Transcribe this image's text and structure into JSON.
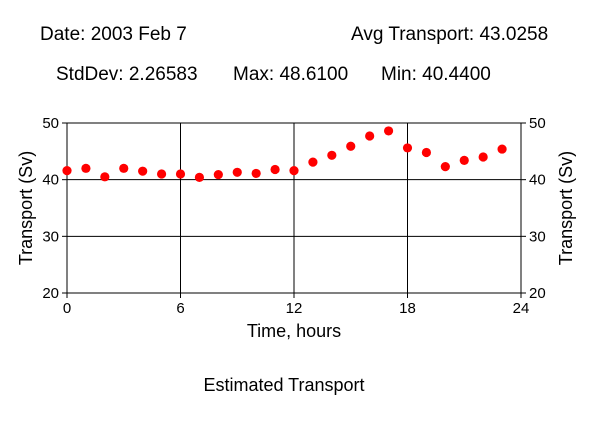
{
  "header": {
    "date": "Date: 2003 Feb 7",
    "avg": "Avg Transport: 43.0258",
    "stddev": "StdDev: 2.26583",
    "max": "Max: 48.6100",
    "min": "Min: 40.4400"
  },
  "caption": "Estimated Transport",
  "chart_data": {
    "type": "scatter",
    "title": "",
    "xlabel": "Time, hours",
    "ylabel": "Transport (Sv)",
    "xlim": [
      0,
      24
    ],
    "ylim": [
      20,
      50
    ],
    "xticks": [
      "0",
      "6",
      "12",
      "18",
      "24"
    ],
    "yticks": [
      "20",
      "30",
      "40",
      "50"
    ],
    "grid": true,
    "marker_color": "#ff0000",
    "x": [
      0,
      1,
      2,
      3,
      4,
      5,
      6,
      7,
      8,
      9,
      10,
      11,
      12,
      13,
      14,
      15,
      16,
      17,
      18,
      19,
      20,
      21,
      22,
      23
    ],
    "y": [
      41.6,
      42.0,
      40.5,
      42.0,
      41.5,
      41.0,
      41.0,
      40.4,
      40.9,
      41.3,
      41.1,
      41.8,
      41.6,
      43.1,
      44.3,
      45.9,
      47.7,
      48.6,
      45.6,
      44.8,
      42.3,
      43.4,
      44.0,
      45.4
    ]
  }
}
